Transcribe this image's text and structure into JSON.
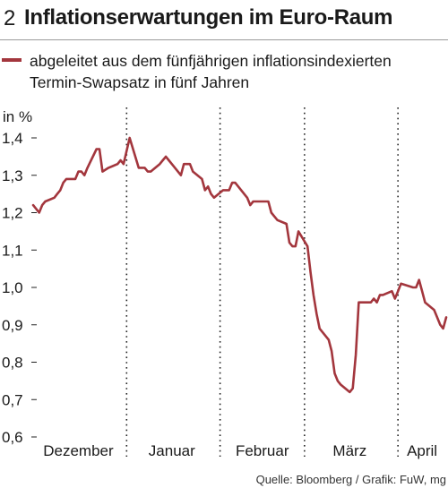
{
  "header": {
    "number": "2",
    "title": "Inflationserwartungen im Euro-Raum"
  },
  "legend": {
    "line1": "abgeleitet aus dem fünfjährigen inflationsindexierten",
    "line2": "Termin-Swapsatz in fünf Jahren",
    "color": "#a3363d"
  },
  "source": "Quelle: Bloomberg / Grafik: FuW, mg",
  "chart_data": {
    "type": "line",
    "ylabel": "in %",
    "ylim": [
      0.6,
      1.4
    ],
    "yticks": [
      {
        "value": 1.4,
        "label": "1,4"
      },
      {
        "value": 1.3,
        "label": "1,3"
      },
      {
        "value": 1.2,
        "label": "1,2"
      },
      {
        "value": 1.1,
        "label": "1,1"
      },
      {
        "value": 1.0,
        "label": "1,0"
      },
      {
        "value": 0.9,
        "label": "0,9"
      },
      {
        "value": 0.8,
        "label": "0,8"
      },
      {
        "value": 0.7,
        "label": "0,7"
      },
      {
        "value": 0.6,
        "label": "0,6"
      }
    ],
    "xlim": [
      "2014-12-01",
      "2015-04-17"
    ],
    "month_boundaries": [
      "2015-01-01",
      "2015-02-01",
      "2015-03-01",
      "2015-04-01"
    ],
    "month_labels": [
      {
        "label": "Dezember",
        "date": "2014-12-16"
      },
      {
        "label": "Januar",
        "date": "2015-01-16"
      },
      {
        "label": "Februar",
        "date": "2015-02-15"
      },
      {
        "label": "März",
        "date": "2015-03-16"
      },
      {
        "label": "April",
        "date": "2015-04-09"
      }
    ],
    "grid": "vertical dotted",
    "series": [
      {
        "color": "#a3363d",
        "x": [
          "2014-12-01",
          "2014-12-02",
          "2014-12-03",
          "2014-12-04",
          "2014-12-05",
          "2014-12-08",
          "2014-12-09",
          "2014-12-10",
          "2014-12-11",
          "2014-12-12",
          "2014-12-15",
          "2014-12-16",
          "2014-12-17",
          "2014-12-18",
          "2014-12-19",
          "2014-12-22",
          "2014-12-23",
          "2014-12-24",
          "2014-12-26",
          "2014-12-29",
          "2014-12-30",
          "2014-12-31",
          "2015-01-02",
          "2015-01-05",
          "2015-01-06",
          "2015-01-07",
          "2015-01-08",
          "2015-01-09",
          "2015-01-12",
          "2015-01-13",
          "2015-01-14",
          "2015-01-15",
          "2015-01-16",
          "2015-01-19",
          "2015-01-20",
          "2015-01-21",
          "2015-01-22",
          "2015-01-23",
          "2015-01-26",
          "2015-01-27",
          "2015-01-28",
          "2015-01-29",
          "2015-01-30",
          "2015-02-02",
          "2015-02-03",
          "2015-02-04",
          "2015-02-05",
          "2015-02-06",
          "2015-02-09",
          "2015-02-10",
          "2015-02-11",
          "2015-02-12",
          "2015-02-13",
          "2015-02-16",
          "2015-02-17",
          "2015-02-18",
          "2015-02-19",
          "2015-02-20",
          "2015-02-23",
          "2015-02-24",
          "2015-02-25",
          "2015-02-26",
          "2015-02-27",
          "2015-03-02",
          "2015-03-03",
          "2015-03-04",
          "2015-03-05",
          "2015-03-06",
          "2015-03-09",
          "2015-03-10",
          "2015-03-11",
          "2015-03-12",
          "2015-03-13",
          "2015-03-16",
          "2015-03-17",
          "2015-03-18",
          "2015-03-19",
          "2015-03-20",
          "2015-03-23",
          "2015-03-24",
          "2015-03-25",
          "2015-03-26",
          "2015-03-27",
          "2015-03-30",
          "2015-03-31",
          "2015-04-01",
          "2015-04-02",
          "2015-04-06",
          "2015-04-07",
          "2015-04-08",
          "2015-04-09",
          "2015-04-10",
          "2015-04-13",
          "2015-04-14",
          "2015-04-15",
          "2015-04-16",
          "2015-04-17"
        ],
        "y": [
          1.22,
          1.21,
          1.2,
          1.22,
          1.23,
          1.24,
          1.25,
          1.26,
          1.28,
          1.29,
          1.29,
          1.31,
          1.31,
          1.3,
          1.32,
          1.37,
          1.37,
          1.31,
          1.32,
          1.33,
          1.34,
          1.33,
          1.4,
          1.32,
          1.32,
          1.32,
          1.31,
          1.31,
          1.33,
          1.34,
          1.35,
          1.34,
          1.33,
          1.3,
          1.33,
          1.33,
          1.33,
          1.31,
          1.29,
          1.26,
          1.27,
          1.25,
          1.24,
          1.26,
          1.26,
          1.26,
          1.28,
          1.28,
          1.25,
          1.24,
          1.22,
          1.23,
          1.23,
          1.23,
          1.23,
          1.2,
          1.19,
          1.18,
          1.17,
          1.12,
          1.11,
          1.11,
          1.15,
          1.11,
          1.04,
          0.98,
          0.93,
          0.89,
          0.86,
          0.83,
          0.77,
          0.75,
          0.74,
          0.72,
          0.73,
          0.82,
          0.96,
          0.96,
          0.96,
          0.97,
          0.96,
          0.98,
          0.98,
          0.99,
          0.97,
          0.99,
          1.01,
          1.0,
          1.0,
          1.02,
          0.99,
          0.96,
          0.94,
          0.92,
          0.9,
          0.89,
          0.92
        ]
      }
    ]
  }
}
